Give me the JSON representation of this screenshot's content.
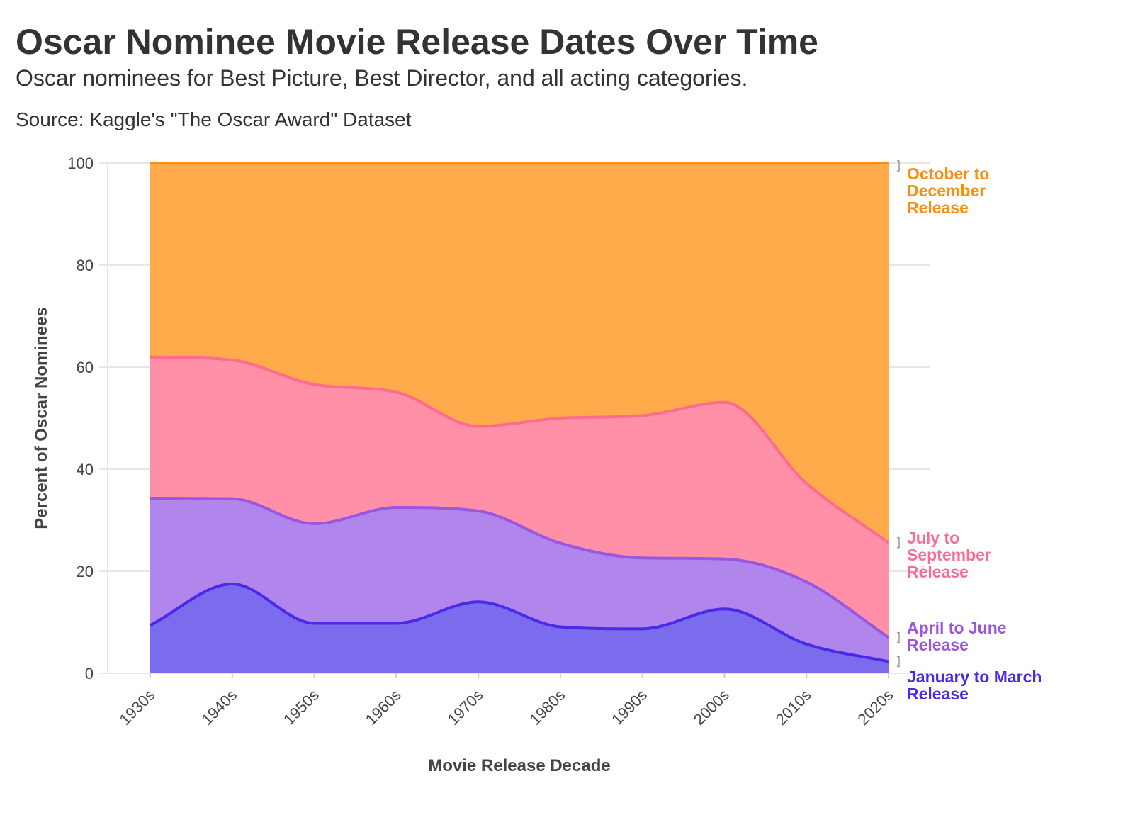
{
  "chart_data": {
    "type": "area",
    "stacked": true,
    "title": "Oscar Nominee Movie Release Dates Over Time",
    "subtitle": "Oscar nominees for Best Picture, Best Director, and all acting categories.",
    "caption": "Source: Kaggle's \"The Oscar Award\" Dataset",
    "xlabel": "Movie Release Decade",
    "ylabel": "Percent of Oscar Nominees",
    "ylim": [
      0,
      100
    ],
    "yticks": [
      0,
      20,
      40,
      60,
      80,
      100
    ],
    "grid": true,
    "legend": "direct labels at right end",
    "categories": [
      "1930s",
      "1940s",
      "1950s",
      "1960s",
      "1970s",
      "1980s",
      "1990s",
      "2000s",
      "2010s",
      "2020s"
    ],
    "series": [
      {
        "name": "January to March Release",
        "label_lines": [
          "January to March",
          "Release"
        ],
        "color": "#4A2AE8",
        "fill": "#7B6CEE",
        "values": [
          9.4,
          17.5,
          9.8,
          9.8,
          14.0,
          9.1,
          8.7,
          12.6,
          5.7,
          2.3
        ]
      },
      {
        "name": "April to June Release",
        "label_lines": [
          "April to June",
          "Release"
        ],
        "color": "#9A55E2",
        "fill": "#B186EC",
        "values": [
          24.9,
          16.7,
          19.5,
          22.7,
          17.8,
          16.4,
          13.9,
          9.8,
          12.2,
          4.7
        ]
      },
      {
        "name": "July to September Release",
        "label_lines": [
          "July to",
          "September",
          "Release"
        ],
        "color": "#FF6B8E",
        "fill": "#FF90A7",
        "values": [
          27.7,
          27.2,
          27.3,
          22.6,
          16.6,
          24.5,
          27.9,
          30.7,
          19.3,
          18.6
        ]
      },
      {
        "name": "October to December Release",
        "label_lines": [
          "October to",
          "December",
          "Release"
        ],
        "color": "#FF8C0A",
        "fill": "#FFAB4C",
        "values": [
          38.0,
          38.6,
          43.4,
          44.9,
          51.6,
          50.0,
          49.5,
          46.9,
          62.8,
          74.4
        ]
      }
    ]
  }
}
